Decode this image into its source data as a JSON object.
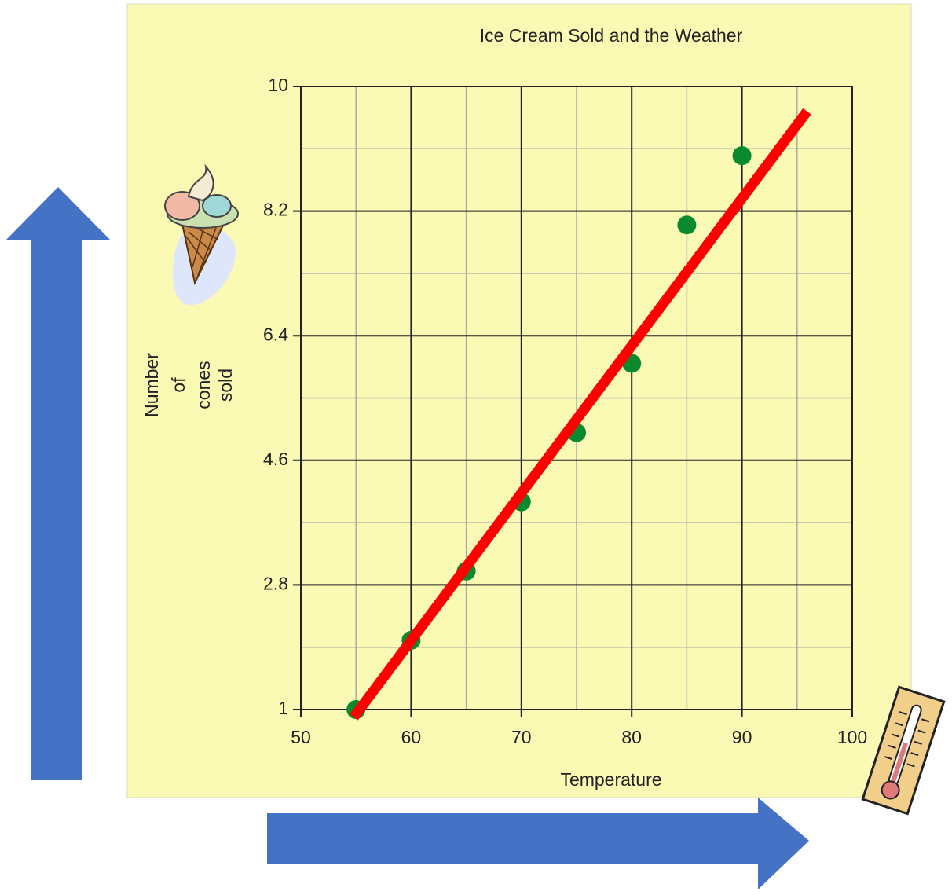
{
  "chart_data": {
    "type": "scatter",
    "title": "Ice Cream Sold and the Weather",
    "xlabel": "Temperature",
    "ylabel": [
      "Number",
      "of",
      "cones",
      "sold"
    ],
    "x": [
      55,
      60,
      65,
      70,
      75,
      80,
      85,
      90
    ],
    "series": [
      {
        "color": "#0a8a2e",
        "values": [
          1,
          2,
          3,
          4,
          5,
          6,
          8,
          9
        ]
      }
    ],
    "trend_line": {
      "color": "#ff0000",
      "x": [
        54.8,
        95.9
      ],
      "y": [
        0.89,
        9.64
      ]
    },
    "xlim": [
      50,
      100
    ],
    "xticks": [
      50,
      60,
      70,
      80,
      90,
      100
    ],
    "ylim": [
      1,
      10
    ],
    "yticks": [
      1,
      2.8,
      4.6,
      6.4,
      8.2,
      10
    ],
    "grid": true,
    "minor_grid": true
  }
}
